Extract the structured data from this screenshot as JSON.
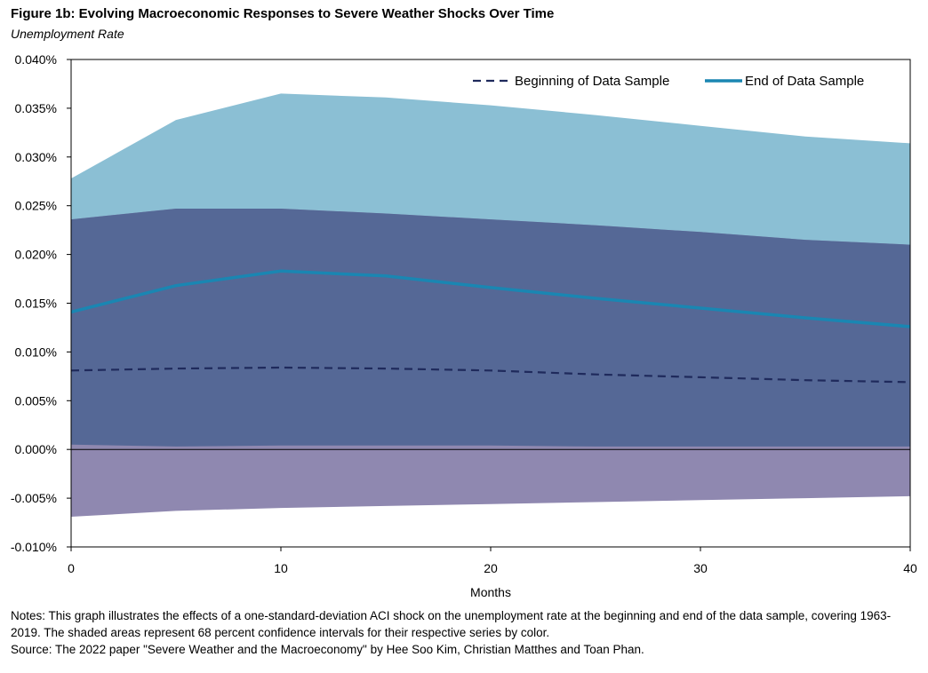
{
  "figure": {
    "title": "Figure 1b: Evolving Macroeconomic Responses to Severe Weather Shocks Over Time",
    "subtitle": "Unemployment Rate"
  },
  "notes": {
    "line1": "Notes: This graph illustrates the effects of a one-standard-deviation ACI shock on the unemployment rate at the beginning and end of the data sample, covering 1963-2019.  The shaded areas represent 68 percent confidence intervals for their respective series by color.",
    "line2": "Source: The 2022  paper \"Severe Weather and the Macroeconomy\" by Hee Soo Kim, Christian Matthes and Toan Phan."
  },
  "chart_data": {
    "type": "line",
    "xlabel": "Months",
    "ylabel": "",
    "xlim": [
      0,
      40
    ],
    "ylim": [
      -0.01,
      0.04
    ],
    "xticks": [
      0,
      10,
      20,
      30,
      40
    ],
    "yticks": [
      -0.01,
      -0.005,
      0.0,
      0.005,
      0.01,
      0.015,
      0.02,
      0.025,
      0.03,
      0.035,
      0.04
    ],
    "ytick_labels": [
      "-0.010%",
      "-0.005%",
      "0.000%",
      "0.005%",
      "0.010%",
      "0.015%",
      "0.020%",
      "0.025%",
      "0.030%",
      "0.035%",
      "0.040%"
    ],
    "xtick_labels": [
      "0",
      "10",
      "20",
      "30",
      "40"
    ],
    "grid": false,
    "legend_position": "top-right",
    "colors": {
      "begin_band": "#8F88B0",
      "end_band": "#8BBFD4",
      "overlap": "#556896",
      "begin_line": "#1F2A5C",
      "end_line": "#1A86B2"
    },
    "series": [
      {
        "name": "Beginning of Data Sample",
        "style": "dashed",
        "x": [
          0,
          5,
          10,
          15,
          20,
          25,
          30,
          35,
          40
        ],
        "y": [
          0.0081,
          0.0083,
          0.0084,
          0.0083,
          0.0081,
          0.0077,
          0.0074,
          0.0071,
          0.0069
        ],
        "lower": [
          -0.0069,
          -0.0063,
          -0.006,
          -0.0058,
          -0.0056,
          -0.0054,
          -0.0052,
          -0.005,
          -0.0048
        ],
        "upper": [
          0.0236,
          0.0247,
          0.0247,
          0.0242,
          0.0236,
          0.023,
          0.0223,
          0.0215,
          0.021
        ]
      },
      {
        "name": "End of Data Sample",
        "style": "solid",
        "x": [
          0,
          5,
          10,
          15,
          20,
          25,
          30,
          35,
          40
        ],
        "y": [
          0.0141,
          0.0168,
          0.0183,
          0.0178,
          0.0166,
          0.0155,
          0.0145,
          0.0135,
          0.0126
        ],
        "lower": [
          0.0005,
          0.0003,
          0.0004,
          0.0004,
          0.0004,
          0.0003,
          0.0003,
          0.0003,
          0.0003
        ],
        "upper": [
          0.0278,
          0.0338,
          0.0365,
          0.0361,
          0.0353,
          0.0343,
          0.0332,
          0.0321,
          0.0314
        ]
      }
    ]
  }
}
